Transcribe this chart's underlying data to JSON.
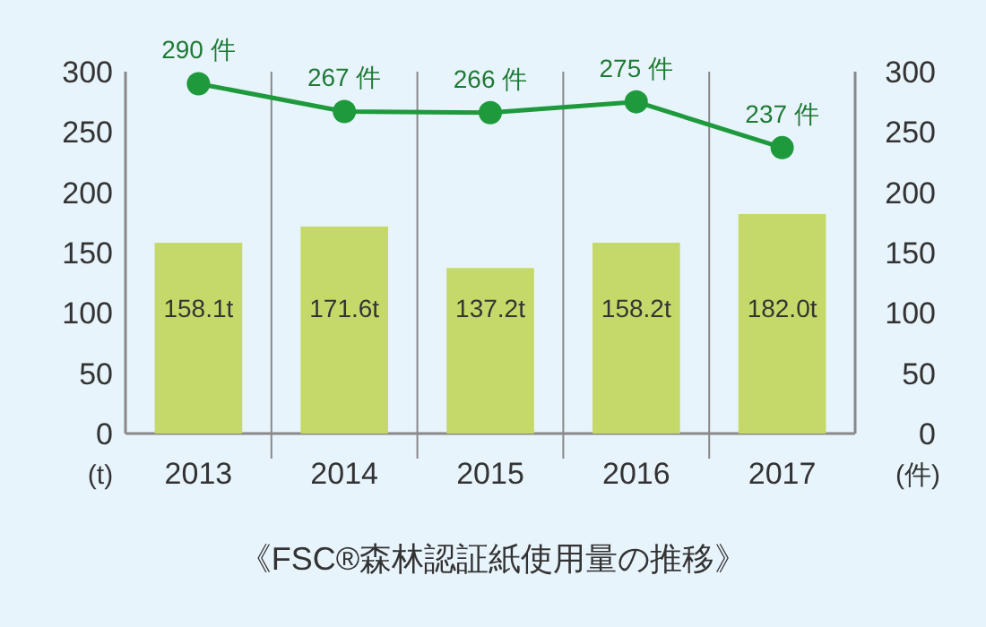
{
  "chart_data": {
    "type": "bar",
    "title": "《FSC®森林認証紙使用量の推移》",
    "ylabel": "(t)",
    "y2label": "(件)",
    "categories": [
      "2013",
      "2014",
      "2015",
      "2016",
      "2017"
    ],
    "series": [
      {
        "color": "#c5d96a",
        "values": [
          158.1,
          171.6,
          137.2,
          158.2,
          182.0
        ],
        "value_labels": [
          "158.1t",
          "171.6t",
          "137.2t",
          "158.2t",
          "182.0t"
        ]
      },
      {
        "type": "line",
        "color": "#1e9a3c",
        "values": [
          290,
          267,
          266,
          275,
          237
        ],
        "value_labels": [
          "290 件",
          "267 件",
          "266 件",
          "275 件",
          "237 件"
        ]
      }
    ],
    "marker": "circle",
    "ylim": [
      0,
      300
    ],
    "yticks": [
      0,
      50,
      100,
      150,
      200,
      250,
      300
    ],
    "y2lim": [
      0,
      300
    ],
    "y2ticks": [
      0,
      50,
      100,
      150,
      200,
      250,
      300
    ],
    "grid": "x"
  }
}
